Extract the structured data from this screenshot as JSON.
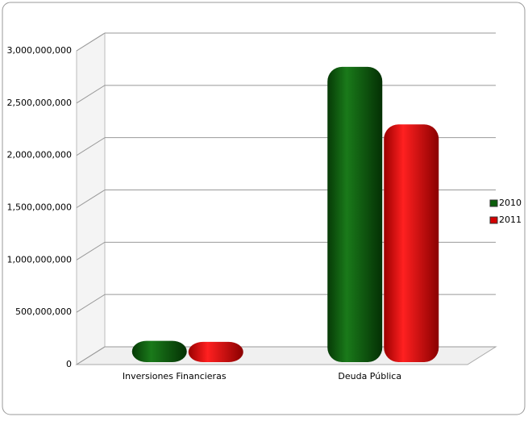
{
  "chart_data": {
    "type": "bar3d",
    "categories": [
      "Inversiones Financieras",
      "Deuda Pública"
    ],
    "series": [
      {
        "name": "2010",
        "color": "#0b5e0b",
        "values": [
          80000000,
          2700000000
        ]
      },
      {
        "name": "2011",
        "color": "#d40000",
        "values": [
          70000000,
          2150000000
        ]
      }
    ],
    "ylim": [
      0,
      3000000000
    ],
    "yticks": [
      0,
      {
        "value": 500000000,
        "label": "500,000,000"
      },
      {
        "value": 1000000000,
        "label": "1,000,000,000"
      },
      {
        "value": 1500000000,
        "label": "1,500,000,000"
      },
      {
        "value": 2000000000,
        "label": "2,000,000,000"
      },
      {
        "value": 2500000000,
        "label": "2,500,000,000"
      },
      {
        "value": 3000000000,
        "label": "3,000,000,000"
      }
    ],
    "grid": true,
    "legend": "right"
  }
}
